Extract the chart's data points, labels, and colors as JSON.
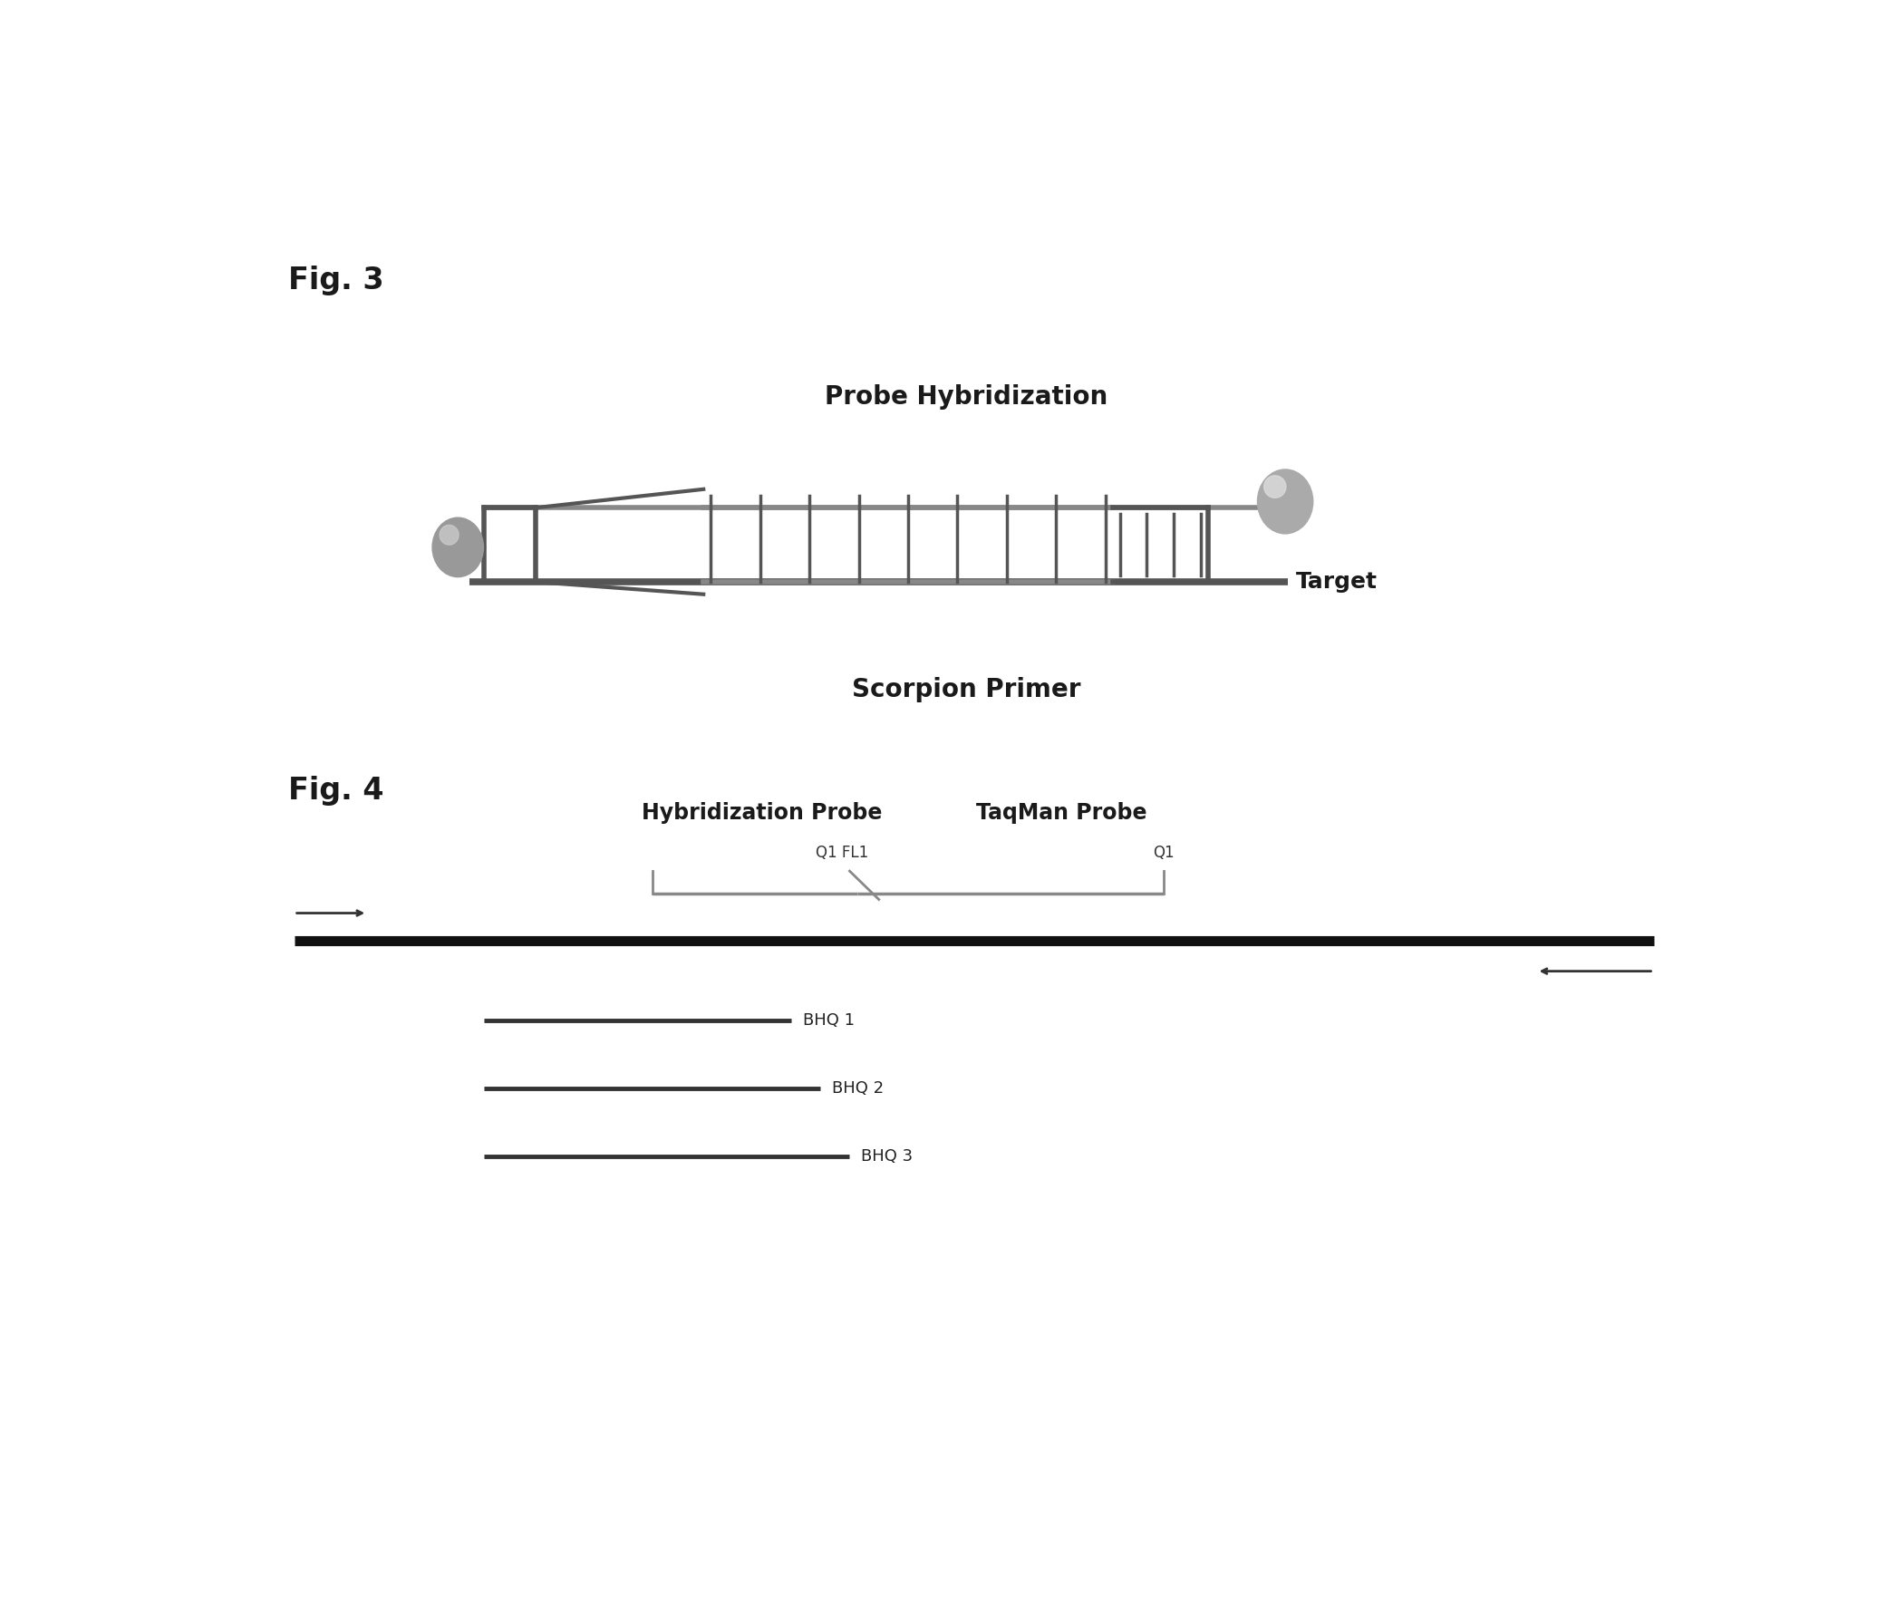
{
  "fig3_label": "Fig. 3",
  "fig4_label": "Fig. 4",
  "fig3_title_probe": "Probe Hybridization",
  "fig3_label_target": "Target",
  "fig3_label_scorpion": "Scorpion Primer",
  "fig4_title1": "Hybridization Probe",
  "fig4_title2": "TaqMan Probe",
  "fig4_label_q1fl1": "Q1 FL1",
  "fig4_label_q1": "Q1",
  "fig4_bhq1": "BHQ 1",
  "fig4_bhq2": "BHQ 2",
  "fig4_bhq3": "BHQ 3",
  "bg_color": "#ffffff",
  "dark_color": "#555555",
  "mid_gray": "#888888",
  "light_gray": "#aaaaaa",
  "sphere_gray": "#999999",
  "sphere_light": "#cccccc",
  "black": "#111111"
}
